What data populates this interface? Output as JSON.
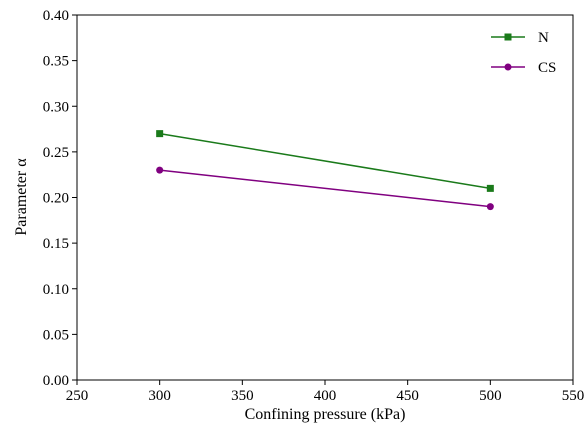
{
  "chart_data": {
    "type": "line",
    "xlabel": "Confining pressure (kPa)",
    "ylabel": "Parameter α",
    "xlim": [
      250,
      550
    ],
    "ylim": [
      0.0,
      0.4
    ],
    "xticks": [
      250,
      300,
      350,
      400,
      450,
      500,
      550
    ],
    "yticks": [
      0.0,
      0.05,
      0.1,
      0.15,
      0.2,
      0.25,
      0.3,
      0.35,
      0.4
    ],
    "ytick_decimals": 2,
    "grid": false,
    "legend_position": "top-right",
    "series": [
      {
        "name": "N",
        "color": "#1a7a1a",
        "marker": "square",
        "x": [
          300,
          500
        ],
        "y": [
          0.27,
          0.21
        ]
      },
      {
        "name": "CS",
        "color": "#800080",
        "marker": "circle",
        "x": [
          300,
          500
        ],
        "y": [
          0.23,
          0.19
        ]
      }
    ]
  }
}
